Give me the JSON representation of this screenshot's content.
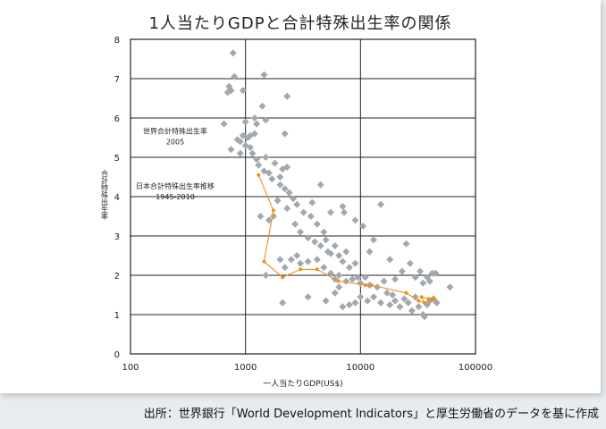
{
  "chart_data": {
    "type": "scatter",
    "title": "1人当たりGDPと合計特殊出生率の関係",
    "xlabel": "一人当たりGDP(US$)",
    "ylabel": "合計特殊出生率",
    "xscale": "log",
    "xlim": [
      100,
      100000
    ],
    "ylim": [
      0,
      8
    ],
    "x_ticks": [
      "100",
      "1000",
      "10000",
      "100000"
    ],
    "y_ticks": [
      "0",
      "1",
      "2",
      "3",
      "4",
      "5",
      "6",
      "7",
      "8"
    ],
    "grid": true,
    "colors": {
      "world": "#a2a9ae",
      "japan": "#f0901c",
      "grid": "#222222"
    },
    "annotations": [
      {
        "lines": [
          "世界合計特殊出生率",
          "2005"
        ],
        "at_x": 100,
        "at_y": 5.6
      },
      {
        "lines": [
          "日本合計特殊出生率推移",
          "1945-2010"
        ],
        "at_x": 100,
        "at_y": 4.2
      }
    ],
    "series": [
      {
        "key": "world",
        "marker": "diamond",
        "points": [
          [
            780,
            7.65
          ],
          [
            750,
            6.7
          ],
          [
            800,
            7.05
          ],
          [
            720,
            6.8
          ],
          [
            700,
            6.65
          ],
          [
            950,
            6.7
          ],
          [
            1450,
            7.1
          ],
          [
            1400,
            6.3
          ],
          [
            1500,
            5.95
          ],
          [
            2300,
            6.55
          ],
          [
            1200,
            6.0
          ],
          [
            650,
            5.85
          ],
          [
            1000,
            5.9
          ],
          [
            1100,
            5.55
          ],
          [
            750,
            5.2
          ],
          [
            850,
            5.45
          ],
          [
            900,
            5.4
          ],
          [
            950,
            5.55
          ],
          [
            1050,
            5.5
          ],
          [
            1200,
            5.6
          ],
          [
            1250,
            5.85
          ],
          [
            1000,
            5.3
          ],
          [
            1150,
            5.1
          ],
          [
            1250,
            4.95
          ],
          [
            900,
            5.1
          ],
          [
            1100,
            5.25
          ],
          [
            2200,
            5.6
          ],
          [
            1500,
            5.0
          ],
          [
            1300,
            4.8
          ],
          [
            1450,
            4.65
          ],
          [
            1600,
            4.6
          ],
          [
            1700,
            4.45
          ],
          [
            1800,
            4.85
          ],
          [
            2000,
            4.5
          ],
          [
            2100,
            4.7
          ],
          [
            2300,
            4.75
          ],
          [
            2000,
            4.3
          ],
          [
            2200,
            4.2
          ],
          [
            2400,
            4.1
          ],
          [
            2600,
            3.95
          ],
          [
            2800,
            3.8
          ],
          [
            1900,
            3.9
          ],
          [
            1750,
            3.5
          ],
          [
            2300,
            3.7
          ],
          [
            3200,
            3.6
          ],
          [
            3700,
            3.5
          ],
          [
            4200,
            3.3
          ],
          [
            2700,
            3.3
          ],
          [
            3000,
            3.1
          ],
          [
            3500,
            2.95
          ],
          [
            4000,
            2.85
          ],
          [
            4500,
            2.75
          ],
          [
            5000,
            2.9
          ],
          [
            4800,
            3.1
          ],
          [
            5200,
            2.6
          ],
          [
            5500,
            2.55
          ],
          [
            6000,
            2.75
          ],
          [
            6500,
            2.5
          ],
          [
            7000,
            2.35
          ],
          [
            7500,
            2.6
          ],
          [
            8000,
            2.2
          ],
          [
            9000,
            2.3
          ],
          [
            9500,
            1.95
          ],
          [
            4500,
            4.3
          ],
          [
            3800,
            3.85
          ],
          [
            5500,
            3.6
          ],
          [
            7000,
            3.75
          ],
          [
            7200,
            3.6
          ],
          [
            9000,
            3.4
          ],
          [
            10500,
            3.25
          ],
          [
            13000,
            2.9
          ],
          [
            15000,
            3.8
          ],
          [
            12000,
            2.6
          ],
          [
            18000,
            2.4
          ],
          [
            1350,
            3.5
          ],
          [
            1600,
            3.4
          ],
          [
            2000,
            2.4
          ],
          [
            2200,
            2.2
          ],
          [
            1500,
            2.0
          ],
          [
            2500,
            2.4
          ],
          [
            3000,
            2.3
          ],
          [
            2800,
            2.5
          ],
          [
            3500,
            2.35
          ],
          [
            4200,
            2.4
          ],
          [
            4800,
            2.2
          ],
          [
            5500,
            2.05
          ],
          [
            6000,
            1.9
          ],
          [
            6500,
            2.0
          ],
          [
            7500,
            1.85
          ],
          [
            8500,
            1.9
          ],
          [
            10000,
            1.8
          ],
          [
            11000,
            1.95
          ],
          [
            12000,
            1.75
          ],
          [
            14000,
            1.7
          ],
          [
            16000,
            1.85
          ],
          [
            20000,
            1.9
          ],
          [
            23000,
            2.1
          ],
          [
            25000,
            2.8
          ],
          [
            27000,
            2.3
          ],
          [
            30000,
            1.95
          ],
          [
            33000,
            2.1
          ],
          [
            35000,
            1.8
          ],
          [
            38000,
            1.95
          ],
          [
            40000,
            1.85
          ],
          [
            42000,
            2.05
          ],
          [
            45000,
            2.05
          ],
          [
            60000,
            1.7
          ],
          [
            2100,
            1.3
          ],
          [
            3500,
            1.45
          ],
          [
            5000,
            1.35
          ],
          [
            6000,
            1.55
          ],
          [
            7000,
            1.2
          ],
          [
            8000,
            1.25
          ],
          [
            9000,
            1.3
          ],
          [
            10000,
            1.45
          ],
          [
            11500,
            1.35
          ],
          [
            13000,
            1.45
          ],
          [
            15000,
            1.3
          ],
          [
            18000,
            1.25
          ],
          [
            20000,
            1.35
          ],
          [
            22000,
            1.2
          ],
          [
            24000,
            1.4
          ],
          [
            26000,
            1.3
          ],
          [
            28000,
            1.1
          ],
          [
            30000,
            1.45
          ],
          [
            32000,
            1.2
          ],
          [
            35000,
            1.0
          ],
          [
            36000,
            0.95
          ],
          [
            38000,
            1.25
          ],
          [
            40000,
            1.35
          ],
          [
            43000,
            1.4
          ],
          [
            46000,
            1.3
          ],
          [
            6500,
            1.7
          ],
          [
            17000,
            1.55
          ],
          [
            19000,
            1.5
          ]
        ]
      },
      {
        "key": "japan",
        "marker": "dot",
        "points": [
          [
            1300,
            4.55
          ],
          [
            1750,
            3.65
          ],
          [
            1450,
            2.35
          ],
          [
            2100,
            1.95
          ],
          [
            3000,
            2.15
          ],
          [
            4200,
            2.15
          ],
          [
            6400,
            1.85
          ],
          [
            11000,
            1.75
          ],
          [
            12500,
            1.75
          ],
          [
            25000,
            1.55
          ],
          [
            32000,
            1.35
          ],
          [
            36000,
            1.3
          ],
          [
            34000,
            1.45
          ],
          [
            39000,
            1.4
          ],
          [
            41000,
            1.38
          ],
          [
            44000,
            1.4
          ]
        ]
      }
    ]
  },
  "source_note": "出所：世界銀行「World Development Indicators」と厚生労働省のデータを基に作成"
}
